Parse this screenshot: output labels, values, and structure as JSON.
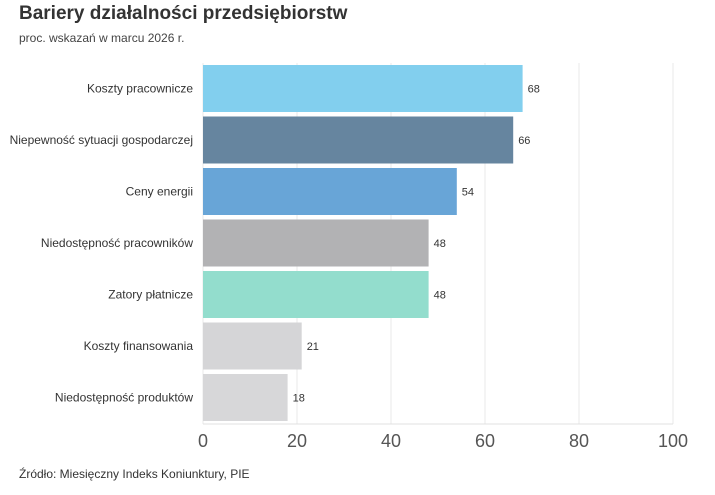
{
  "chart_data": {
    "type": "bar",
    "orientation": "horizontal",
    "title": "Bariery działalności przedsiębiorstw",
    "subtitle": "proc. wskazań w marcu 2026 r.",
    "source": "Źródło: Miesięczny Indeks Koniunktury, PIE",
    "categories": [
      "Koszty pracownicze",
      "Niepewność sytuacji gospodarczej",
      "Ceny energii",
      "Niedostępność pracowników",
      "Zatory płatnicze",
      "Koszty finansowania",
      "Niedostępność produktów"
    ],
    "values": [
      68,
      66,
      54,
      48,
      48,
      21,
      18
    ],
    "colors": [
      "#82cfee",
      "#66859f",
      "#68a5d7",
      "#b2b2b4",
      "#93ddcd",
      "#d5d5d7",
      "#d7d7d9"
    ],
    "xlim": [
      0,
      100
    ],
    "xticks": [
      0,
      20,
      40,
      60,
      80,
      100
    ],
    "grid": true,
    "xlabel": "",
    "ylabel": ""
  }
}
